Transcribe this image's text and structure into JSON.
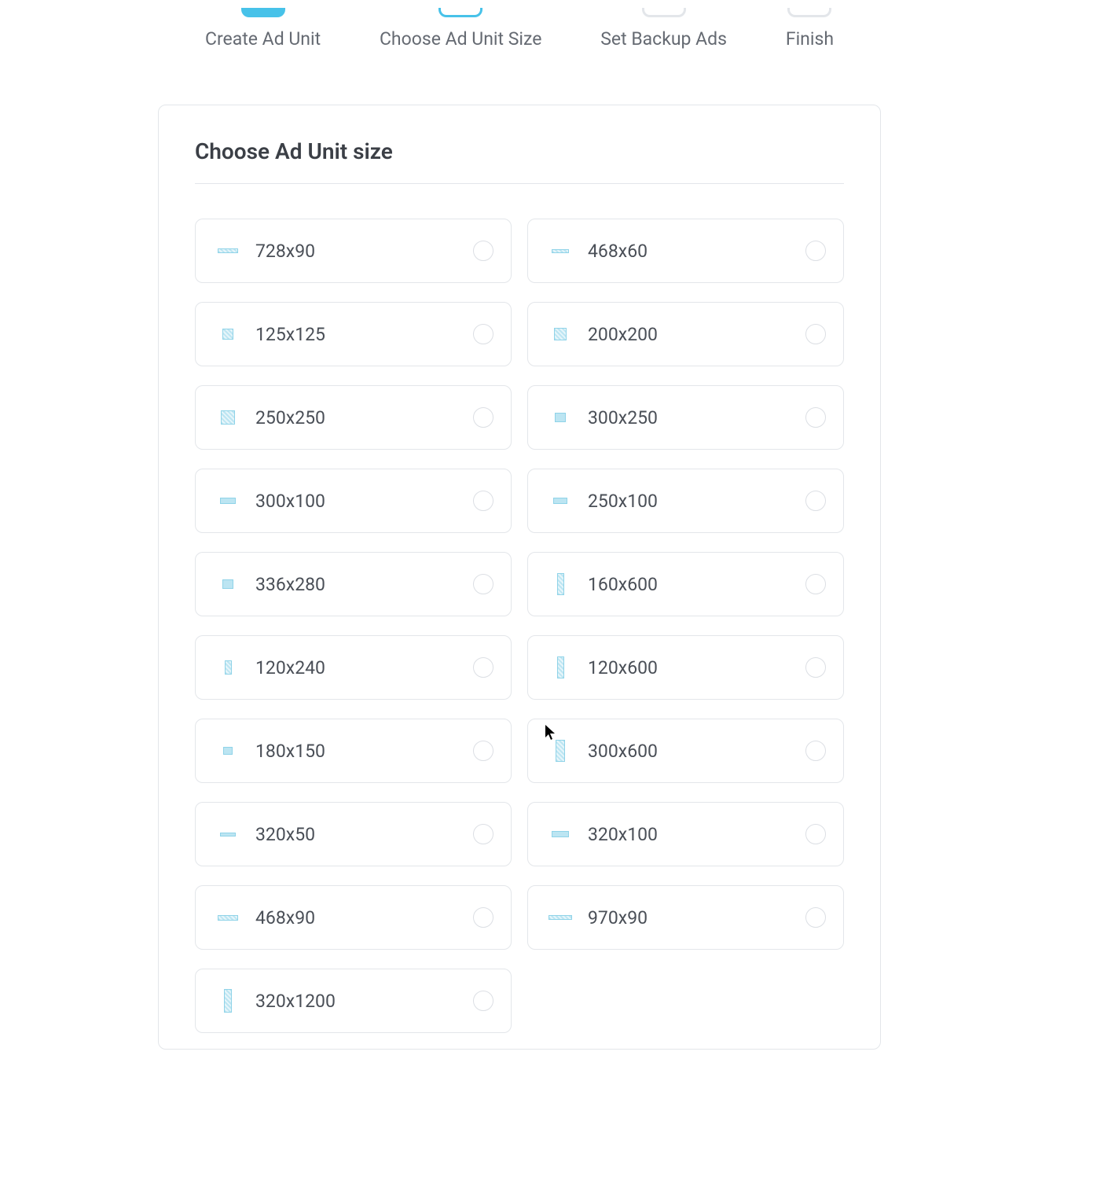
{
  "steps": [
    {
      "label": "Create Ad Unit",
      "state": "active"
    },
    {
      "label": "Choose Ad Unit Size",
      "state": "current"
    },
    {
      "label": "Set Backup Ads",
      "state": "pending"
    },
    {
      "label": "Finish",
      "state": "pending"
    }
  ],
  "card": {
    "title": "Choose Ad Unit size"
  },
  "sizes": [
    {
      "label": "728x90",
      "thumb_w": 26,
      "thumb_h": 6,
      "stripe": true
    },
    {
      "label": "468x60",
      "thumb_w": 22,
      "thumb_h": 5,
      "stripe": true
    },
    {
      "label": "125x125",
      "thumb_w": 14,
      "thumb_h": 14,
      "stripe": true
    },
    {
      "label": "200x200",
      "thumb_w": 16,
      "thumb_h": 16,
      "stripe": true
    },
    {
      "label": "250x250",
      "thumb_w": 18,
      "thumb_h": 18,
      "stripe": true
    },
    {
      "label": "300x250",
      "thumb_w": 14,
      "thumb_h": 12,
      "stripe": false
    },
    {
      "label": "300x100",
      "thumb_w": 20,
      "thumb_h": 8,
      "stripe": false
    },
    {
      "label": "250x100",
      "thumb_w": 18,
      "thumb_h": 8,
      "stripe": false
    },
    {
      "label": "336x280",
      "thumb_w": 14,
      "thumb_h": 12,
      "stripe": false
    },
    {
      "label": "160x600",
      "thumb_w": 9,
      "thumb_h": 28,
      "stripe": true
    },
    {
      "label": "120x240",
      "thumb_w": 9,
      "thumb_h": 18,
      "stripe": true
    },
    {
      "label": "120x600",
      "thumb_w": 9,
      "thumb_h": 28,
      "stripe": true
    },
    {
      "label": "180x150",
      "thumb_w": 12,
      "thumb_h": 10,
      "stripe": false
    },
    {
      "label": "300x600",
      "thumb_w": 12,
      "thumb_h": 28,
      "stripe": true
    },
    {
      "label": "320x50",
      "thumb_w": 20,
      "thumb_h": 5,
      "stripe": false
    },
    {
      "label": "320x100",
      "thumb_w": 22,
      "thumb_h": 8,
      "stripe": false
    },
    {
      "label": "468x90",
      "thumb_w": 26,
      "thumb_h": 7,
      "stripe": true
    },
    {
      "label": "970x90",
      "thumb_w": 30,
      "thumb_h": 6,
      "stripe": true
    },
    {
      "label": "320x1200",
      "thumb_w": 10,
      "thumb_h": 30,
      "stripe": true
    }
  ],
  "colors": {
    "accent": "#47c2e9",
    "border": "#e3e6ea",
    "text": "#4a4f57",
    "title": "#3b3f46"
  }
}
